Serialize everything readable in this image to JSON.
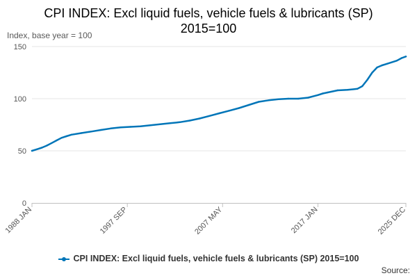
{
  "chart_data": {
    "type": "line",
    "title_line1": "CPI INDEX: Excl liquid fuels, vehicle fuels & lubricants (SP)",
    "title_line2": "2015=100",
    "ylabel": "Index, base year = 100",
    "xlabel": "",
    "ylim": [
      0,
      150
    ],
    "yticks": [
      "0",
      "50",
      "100",
      "150"
    ],
    "grid": true,
    "x_domain": [
      1988.0,
      2025.92
    ],
    "xticks": [
      {
        "label": "1988 JAN",
        "x": 1988.0
      },
      {
        "label": "1997 SEP",
        "x": 1997.67
      },
      {
        "label": "2007 MAY",
        "x": 2007.33
      },
      {
        "label": "2017 JAN",
        "x": 2017.0
      },
      {
        "label": "2025 DEC",
        "x": 2025.92
      }
    ],
    "series": [
      {
        "name": "CPI INDEX: Excl liquid fuels, vehicle fuels & lubricants (SP) 2015=100",
        "color": "#0075b8",
        "x": [
          1988.0,
          1988.5,
          1989.0,
          1989.5,
          1990.0,
          1990.5,
          1991.0,
          1991.5,
          1992.0,
          1993.0,
          1994.0,
          1995.0,
          1996.0,
          1997.0,
          1998.0,
          1999.0,
          2000.0,
          2001.0,
          2002.0,
          2003.0,
          2004.0,
          2005.0,
          2006.0,
          2007.0,
          2008.0,
          2009.0,
          2010.0,
          2011.0,
          2012.0,
          2013.0,
          2014.0,
          2015.0,
          2016.0,
          2017.0,
          2017.5,
          2018.0,
          2019.0,
          2020.0,
          2021.0,
          2021.5,
          2022.0,
          2022.5,
          2023.0,
          2023.5,
          2024.0,
          2025.0,
          2025.5,
          2025.92
        ],
        "values": [
          50.0,
          51.5,
          53.0,
          55.0,
          57.5,
          60.0,
          62.5,
          64.0,
          65.5,
          67.0,
          68.5,
          70.0,
          71.5,
          72.5,
          73.0,
          73.5,
          74.5,
          75.5,
          76.5,
          77.5,
          79.0,
          81.0,
          83.5,
          86.0,
          88.5,
          91.0,
          94.0,
          97.0,
          98.5,
          99.5,
          100.0,
          100.0,
          101.0,
          103.5,
          105.0,
          106.0,
          108.0,
          108.5,
          109.5,
          112.0,
          118.0,
          125.0,
          130.0,
          132.0,
          133.5,
          136.5,
          139.0,
          140.5
        ]
      }
    ]
  },
  "legend": {
    "label": "CPI INDEX: Excl liquid fuels, vehicle fuels & lubricants (SP) 2015=100"
  },
  "source": "Source:"
}
